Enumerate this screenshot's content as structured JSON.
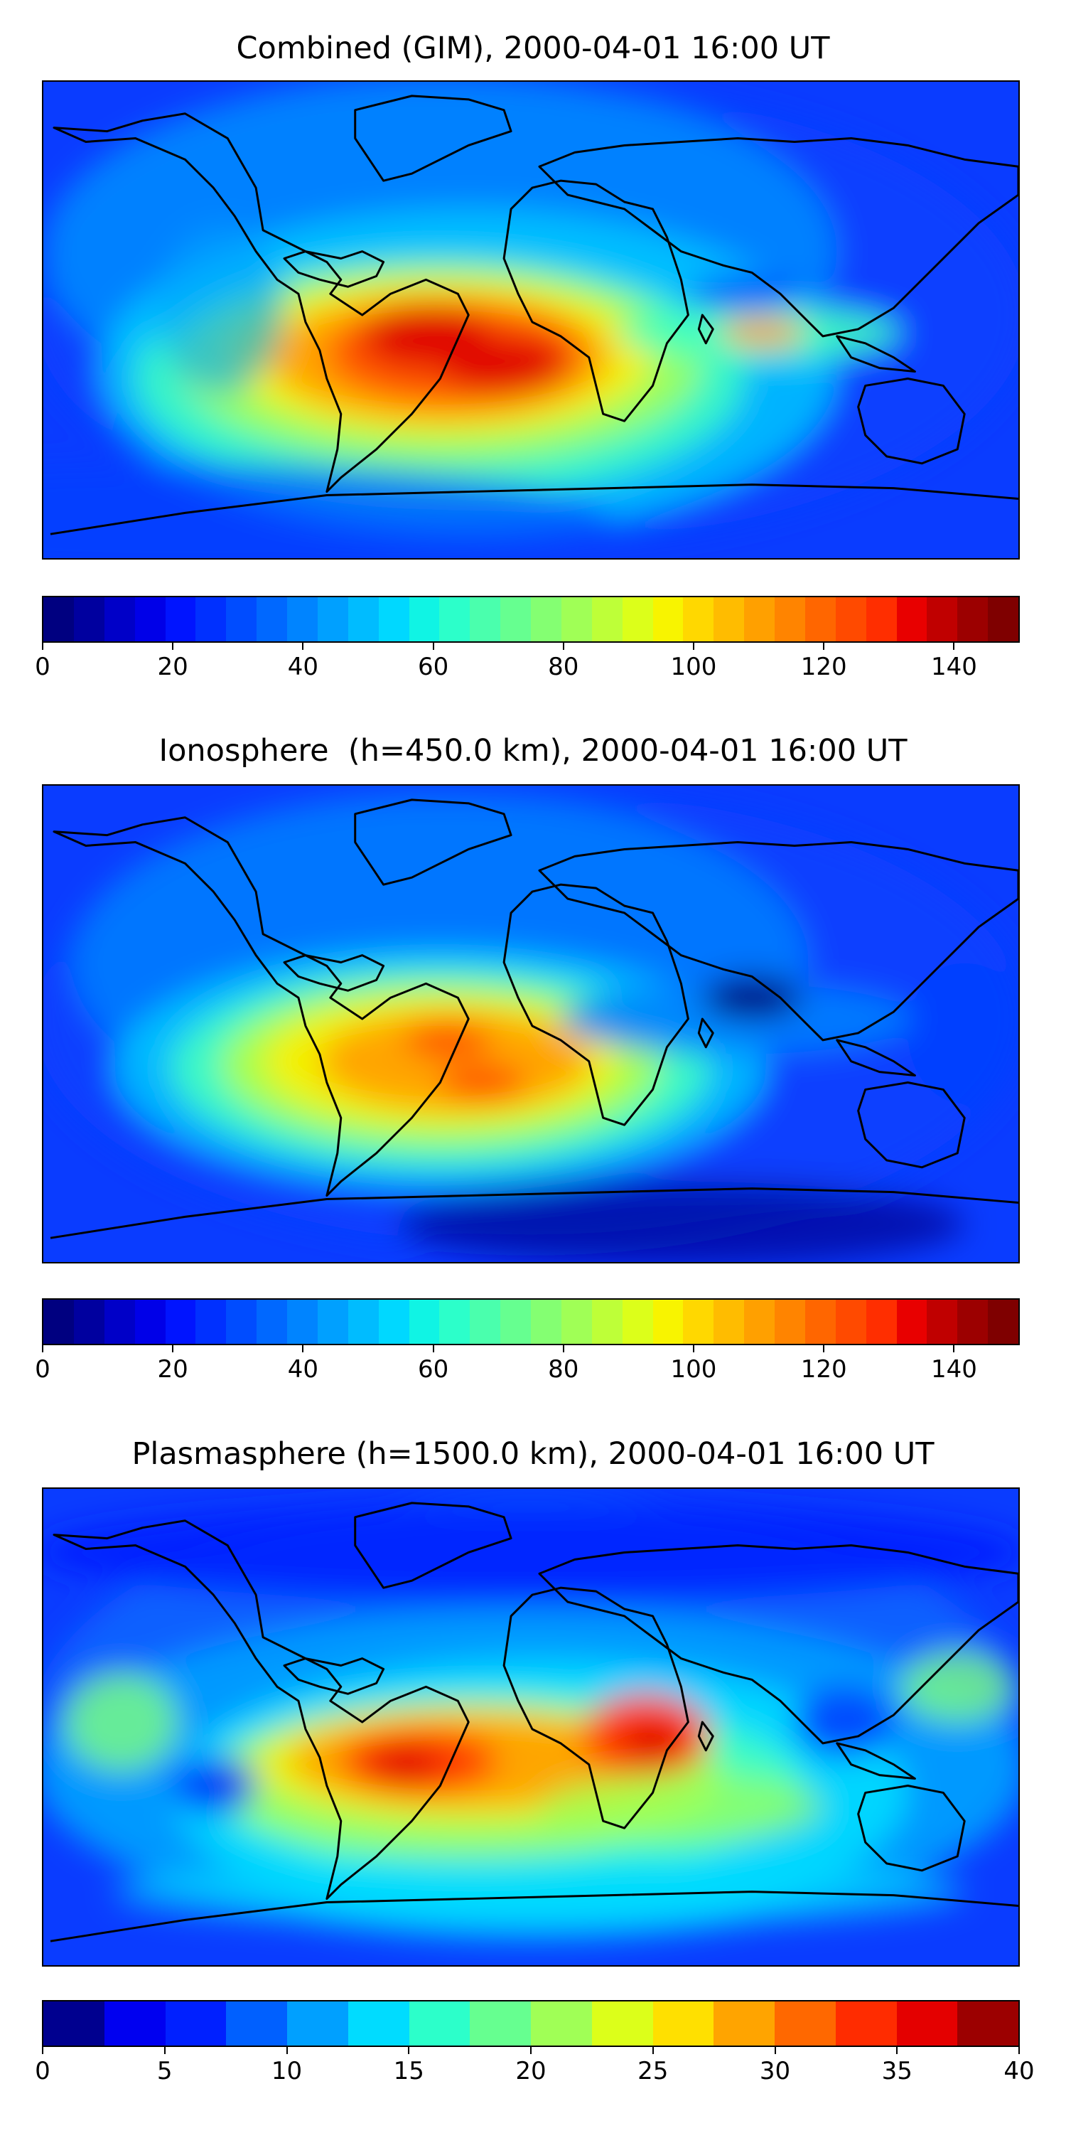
{
  "panels": [
    {
      "title": "Combined (GIM), 2000-04-01 16:00 UT",
      "colorbar": {
        "min": 0,
        "max": 150,
        "ticks": [
          "0",
          "20",
          "40",
          "60",
          "80",
          "100",
          "120",
          "140"
        ],
        "tick_values": [
          0,
          20,
          40,
          60,
          80,
          100,
          120,
          140
        ],
        "colors": [
          "#000080",
          "#00009f",
          "#0000c8",
          "#0000e8",
          "#0014ff",
          "#0030ff",
          "#004cff",
          "#0068ff",
          "#0084ff",
          "#00a0ff",
          "#00bcff",
          "#00d8ff",
          "#10f4e4",
          "#2cffca",
          "#4aff ad",
          "#66ff90",
          "#84ff72",
          "#a0ff56",
          "#beff38",
          "#dcff1a",
          "#f8f400",
          "#ffd800",
          "#ffbc00",
          "#ffa000",
          "#ff8400",
          "#ff6600",
          "#ff4a00",
          "#ff2e00",
          "#e80000",
          "#c00000",
          "#9c0000",
          "#7f0000"
        ]
      }
    },
    {
      "title": "Ionosphere  (h=450.0 km), 2000-04-01 16:00 UT",
      "colorbar": {
        "min": 0,
        "max": 150,
        "ticks": [
          "0",
          "20",
          "40",
          "60",
          "80",
          "100",
          "120",
          "140"
        ],
        "tick_values": [
          0,
          20,
          40,
          60,
          80,
          100,
          120,
          140
        ],
        "colors": [
          "#000080",
          "#00009f",
          "#0000c8",
          "#0000e8",
          "#0014ff",
          "#0030ff",
          "#004cff",
          "#0068ff",
          "#0084ff",
          "#00a0ff",
          "#00bcff",
          "#00d8ff",
          "#10f4e4",
          "#2cffca",
          "#4affad",
          "#66ff90",
          "#84ff72",
          "#a0ff56",
          "#beff38",
          "#dcff1a",
          "#f8f400",
          "#ffd800",
          "#ffbc00",
          "#ffa000",
          "#ff8400",
          "#ff6600",
          "#ff4a00",
          "#ff2e00",
          "#e80000",
          "#c00000",
          "#9c0000",
          "#7f0000"
        ]
      }
    },
    {
      "title": "Plasmasphere (h=1500.0 km), 2000-04-01 16:00 UT",
      "colorbar": {
        "min": 0,
        "max": 40,
        "ticks": [
          "0",
          "5",
          "10",
          "15",
          "20",
          "25",
          "30",
          "35",
          "40"
        ],
        "tick_values": [
          0,
          5,
          10,
          15,
          20,
          25,
          30,
          35,
          40
        ],
        "colors": [
          "#00008f",
          "#0000f0",
          "#0020ff",
          "#0060ff",
          "#00a0ff",
          "#00dcff",
          "#2cffca",
          "#66ff90",
          "#a0ff56",
          "#dcff1a",
          "#ffe000",
          "#ffa400",
          "#ff6800",
          "#ff2c00",
          "#e40000",
          "#9c0000"
        ]
      }
    }
  ]
}
